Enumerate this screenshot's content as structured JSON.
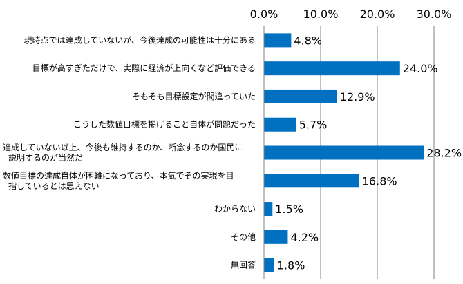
{
  "chart_data": {
    "type": "bar",
    "orientation": "horizontal",
    "categories": [
      [
        "現時点では達成していないが、今後達成の可能性は十分にある"
      ],
      [
        "目標が高すぎただけで、実際に経済が上向くなど評価できる"
      ],
      [
        "そもそも目標設定が間違っていた"
      ],
      [
        "こうした数値目標を掲げること自体が問題だった"
      ],
      [
        "達成していない以上、今後も維持するのか、断念するのか国民に",
        "説明するのが当然だ"
      ],
      [
        "数値目標の達成自体が困難になっており、本気でその実現を目",
        "指しているとは思えない"
      ],
      [
        "わからない"
      ],
      [
        "その他"
      ],
      [
        "無回答"
      ]
    ],
    "values": [
      4.8,
      24.0,
      12.9,
      5.7,
      28.2,
      16.8,
      1.5,
      4.2,
      1.8
    ],
    "data_labels": [
      "4.8%",
      "24.0%",
      "12.9%",
      "5.7%",
      "28.2%",
      "16.8%",
      "1.5%",
      "4.2%",
      "1.8%"
    ],
    "x_ticks": [
      0,
      10,
      20,
      30
    ],
    "x_tick_labels": [
      "0.0%",
      "10.0%",
      "20.0%",
      "30.0%"
    ],
    "xlim": [
      0,
      30
    ],
    "axis_position": "top",
    "grid": true,
    "bar_color": "#0070C0",
    "title": "",
    "xlabel": "",
    "ylabel": ""
  }
}
